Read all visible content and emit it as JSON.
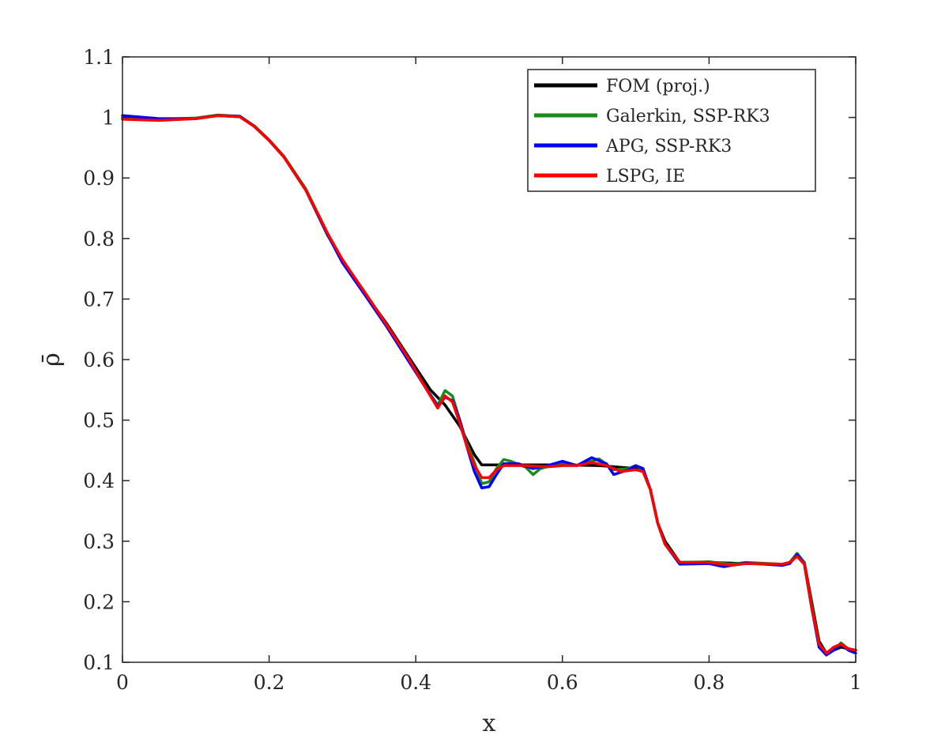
{
  "chart_data": {
    "type": "line",
    "title": "",
    "xlabel": "x",
    "ylabel": "ρ̄",
    "xlim": [
      0,
      1
    ],
    "ylim": [
      0.1,
      1.1
    ],
    "xticks": [
      "0",
      "0.2",
      "0.4",
      "0.6",
      "0.8",
      "1"
    ],
    "yticks": [
      "0.1",
      "0.2",
      "0.3",
      "0.4",
      "0.5",
      "0.6",
      "0.7",
      "0.8",
      "0.9",
      "1",
      "1.1"
    ],
    "grid": false,
    "legend_position": "top-right",
    "series": [
      {
        "name": "FOM (proj.)",
        "color": "#000000",
        "points": [
          [
            0,
            0.998
          ],
          [
            0.05,
            0.996
          ],
          [
            0.1,
            0.998
          ],
          [
            0.13,
            1.003
          ],
          [
            0.16,
            1.001
          ],
          [
            0.18,
            0.985
          ],
          [
            0.2,
            0.962
          ],
          [
            0.22,
            0.935
          ],
          [
            0.25,
            0.88
          ],
          [
            0.28,
            0.805
          ],
          [
            0.3,
            0.765
          ],
          [
            0.33,
            0.71
          ],
          [
            0.36,
            0.66
          ],
          [
            0.39,
            0.605
          ],
          [
            0.42,
            0.55
          ],
          [
            0.44,
            0.525
          ],
          [
            0.46,
            0.49
          ],
          [
            0.48,
            0.443
          ],
          [
            0.49,
            0.426
          ],
          [
            0.52,
            0.426
          ],
          [
            0.55,
            0.426
          ],
          [
            0.6,
            0.426
          ],
          [
            0.65,
            0.425
          ],
          [
            0.7,
            0.42
          ],
          [
            0.71,
            0.415
          ],
          [
            0.72,
            0.385
          ],
          [
            0.73,
            0.33
          ],
          [
            0.74,
            0.3
          ],
          [
            0.76,
            0.265
          ],
          [
            0.8,
            0.265
          ],
          [
            0.85,
            0.263
          ],
          [
            0.9,
            0.262
          ],
          [
            0.91,
            0.265
          ],
          [
            0.92,
            0.278
          ],
          [
            0.93,
            0.265
          ],
          [
            0.94,
            0.2
          ],
          [
            0.95,
            0.135
          ],
          [
            0.96,
            0.115
          ],
          [
            0.98,
            0.125
          ],
          [
            1.0,
            0.12
          ]
        ]
      },
      {
        "name": "Galerkin, SSP-RK3",
        "color": "#1a8a1a",
        "points": [
          [
            0,
            1.0
          ],
          [
            0.05,
            0.997
          ],
          [
            0.1,
            0.999
          ],
          [
            0.13,
            1.004
          ],
          [
            0.16,
            1.002
          ],
          [
            0.18,
            0.986
          ],
          [
            0.2,
            0.963
          ],
          [
            0.22,
            0.936
          ],
          [
            0.25,
            0.882
          ],
          [
            0.28,
            0.808
          ],
          [
            0.3,
            0.762
          ],
          [
            0.33,
            0.712
          ],
          [
            0.36,
            0.658
          ],
          [
            0.39,
            0.6
          ],
          [
            0.41,
            0.56
          ],
          [
            0.43,
            0.525
          ],
          [
            0.44,
            0.549
          ],
          [
            0.45,
            0.54
          ],
          [
            0.46,
            0.5
          ],
          [
            0.47,
            0.46
          ],
          [
            0.48,
            0.43
          ],
          [
            0.49,
            0.395
          ],
          [
            0.5,
            0.398
          ],
          [
            0.51,
            0.42
          ],
          [
            0.52,
            0.435
          ],
          [
            0.53,
            0.432
          ],
          [
            0.55,
            0.422
          ],
          [
            0.56,
            0.41
          ],
          [
            0.57,
            0.42
          ],
          [
            0.6,
            0.43
          ],
          [
            0.62,
            0.425
          ],
          [
            0.65,
            0.436
          ],
          [
            0.67,
            0.418
          ],
          [
            0.69,
            0.42
          ],
          [
            0.7,
            0.425
          ],
          [
            0.71,
            0.418
          ],
          [
            0.72,
            0.385
          ],
          [
            0.73,
            0.33
          ],
          [
            0.74,
            0.295
          ],
          [
            0.76,
            0.265
          ],
          [
            0.8,
            0.266
          ],
          [
            0.83,
            0.262
          ],
          [
            0.85,
            0.265
          ],
          [
            0.9,
            0.262
          ],
          [
            0.91,
            0.265
          ],
          [
            0.92,
            0.28
          ],
          [
            0.93,
            0.265
          ],
          [
            0.94,
            0.195
          ],
          [
            0.95,
            0.13
          ],
          [
            0.96,
            0.115
          ],
          [
            0.97,
            0.12
          ],
          [
            0.98,
            0.132
          ],
          [
            0.99,
            0.122
          ],
          [
            1.0,
            0.12
          ]
        ]
      },
      {
        "name": "APG, SSP-RK3",
        "color": "#0000ff",
        "points": [
          [
            0,
            1.003
          ],
          [
            0.05,
            0.998
          ],
          [
            0.1,
            0.998
          ],
          [
            0.13,
            1.003
          ],
          [
            0.16,
            1.002
          ],
          [
            0.18,
            0.985
          ],
          [
            0.2,
            0.962
          ],
          [
            0.22,
            0.935
          ],
          [
            0.25,
            0.88
          ],
          [
            0.28,
            0.806
          ],
          [
            0.3,
            0.76
          ],
          [
            0.33,
            0.708
          ],
          [
            0.36,
            0.655
          ],
          [
            0.39,
            0.598
          ],
          [
            0.41,
            0.56
          ],
          [
            0.43,
            0.522
          ],
          [
            0.44,
            0.538
          ],
          [
            0.45,
            0.532
          ],
          [
            0.46,
            0.5
          ],
          [
            0.47,
            0.455
          ],
          [
            0.48,
            0.415
          ],
          [
            0.49,
            0.388
          ],
          [
            0.5,
            0.39
          ],
          [
            0.51,
            0.41
          ],
          [
            0.52,
            0.428
          ],
          [
            0.54,
            0.428
          ],
          [
            0.56,
            0.42
          ],
          [
            0.58,
            0.425
          ],
          [
            0.6,
            0.432
          ],
          [
            0.62,
            0.425
          ],
          [
            0.64,
            0.438
          ],
          [
            0.66,
            0.428
          ],
          [
            0.67,
            0.41
          ],
          [
            0.69,
            0.418
          ],
          [
            0.7,
            0.425
          ],
          [
            0.71,
            0.42
          ],
          [
            0.72,
            0.385
          ],
          [
            0.73,
            0.33
          ],
          [
            0.74,
            0.295
          ],
          [
            0.76,
            0.262
          ],
          [
            0.8,
            0.263
          ],
          [
            0.82,
            0.258
          ],
          [
            0.85,
            0.264
          ],
          [
            0.9,
            0.26
          ],
          [
            0.91,
            0.263
          ],
          [
            0.92,
            0.278
          ],
          [
            0.93,
            0.262
          ],
          [
            0.94,
            0.19
          ],
          [
            0.95,
            0.125
          ],
          [
            0.96,
            0.112
          ],
          [
            0.97,
            0.12
          ],
          [
            0.98,
            0.13
          ],
          [
            0.99,
            0.12
          ],
          [
            1.0,
            0.115
          ]
        ]
      },
      {
        "name": "LSPG, IE",
        "color": "#ff0000",
        "points": [
          [
            0,
            0.997
          ],
          [
            0.05,
            0.995
          ],
          [
            0.1,
            0.998
          ],
          [
            0.13,
            1.003
          ],
          [
            0.16,
            1.001
          ],
          [
            0.18,
            0.985
          ],
          [
            0.2,
            0.962
          ],
          [
            0.22,
            0.935
          ],
          [
            0.25,
            0.88
          ],
          [
            0.28,
            0.808
          ],
          [
            0.3,
            0.765
          ],
          [
            0.33,
            0.712
          ],
          [
            0.36,
            0.658
          ],
          [
            0.39,
            0.602
          ],
          [
            0.41,
            0.56
          ],
          [
            0.43,
            0.52
          ],
          [
            0.44,
            0.54
          ],
          [
            0.45,
            0.53
          ],
          [
            0.46,
            0.495
          ],
          [
            0.47,
            0.455
          ],
          [
            0.48,
            0.425
          ],
          [
            0.49,
            0.405
          ],
          [
            0.5,
            0.405
          ],
          [
            0.51,
            0.418
          ],
          [
            0.52,
            0.425
          ],
          [
            0.55,
            0.425
          ],
          [
            0.58,
            0.423
          ],
          [
            0.6,
            0.425
          ],
          [
            0.62,
            0.425
          ],
          [
            0.64,
            0.43
          ],
          [
            0.66,
            0.425
          ],
          [
            0.68,
            0.415
          ],
          [
            0.7,
            0.418
          ],
          [
            0.71,
            0.415
          ],
          [
            0.72,
            0.385
          ],
          [
            0.73,
            0.33
          ],
          [
            0.74,
            0.295
          ],
          [
            0.76,
            0.265
          ],
          [
            0.8,
            0.265
          ],
          [
            0.83,
            0.26
          ],
          [
            0.85,
            0.263
          ],
          [
            0.9,
            0.262
          ],
          [
            0.91,
            0.265
          ],
          [
            0.92,
            0.275
          ],
          [
            0.93,
            0.262
          ],
          [
            0.94,
            0.19
          ],
          [
            0.95,
            0.13
          ],
          [
            0.96,
            0.115
          ],
          [
            0.97,
            0.125
          ],
          [
            0.98,
            0.13
          ],
          [
            0.99,
            0.122
          ],
          [
            1.0,
            0.12
          ]
        ]
      }
    ]
  }
}
